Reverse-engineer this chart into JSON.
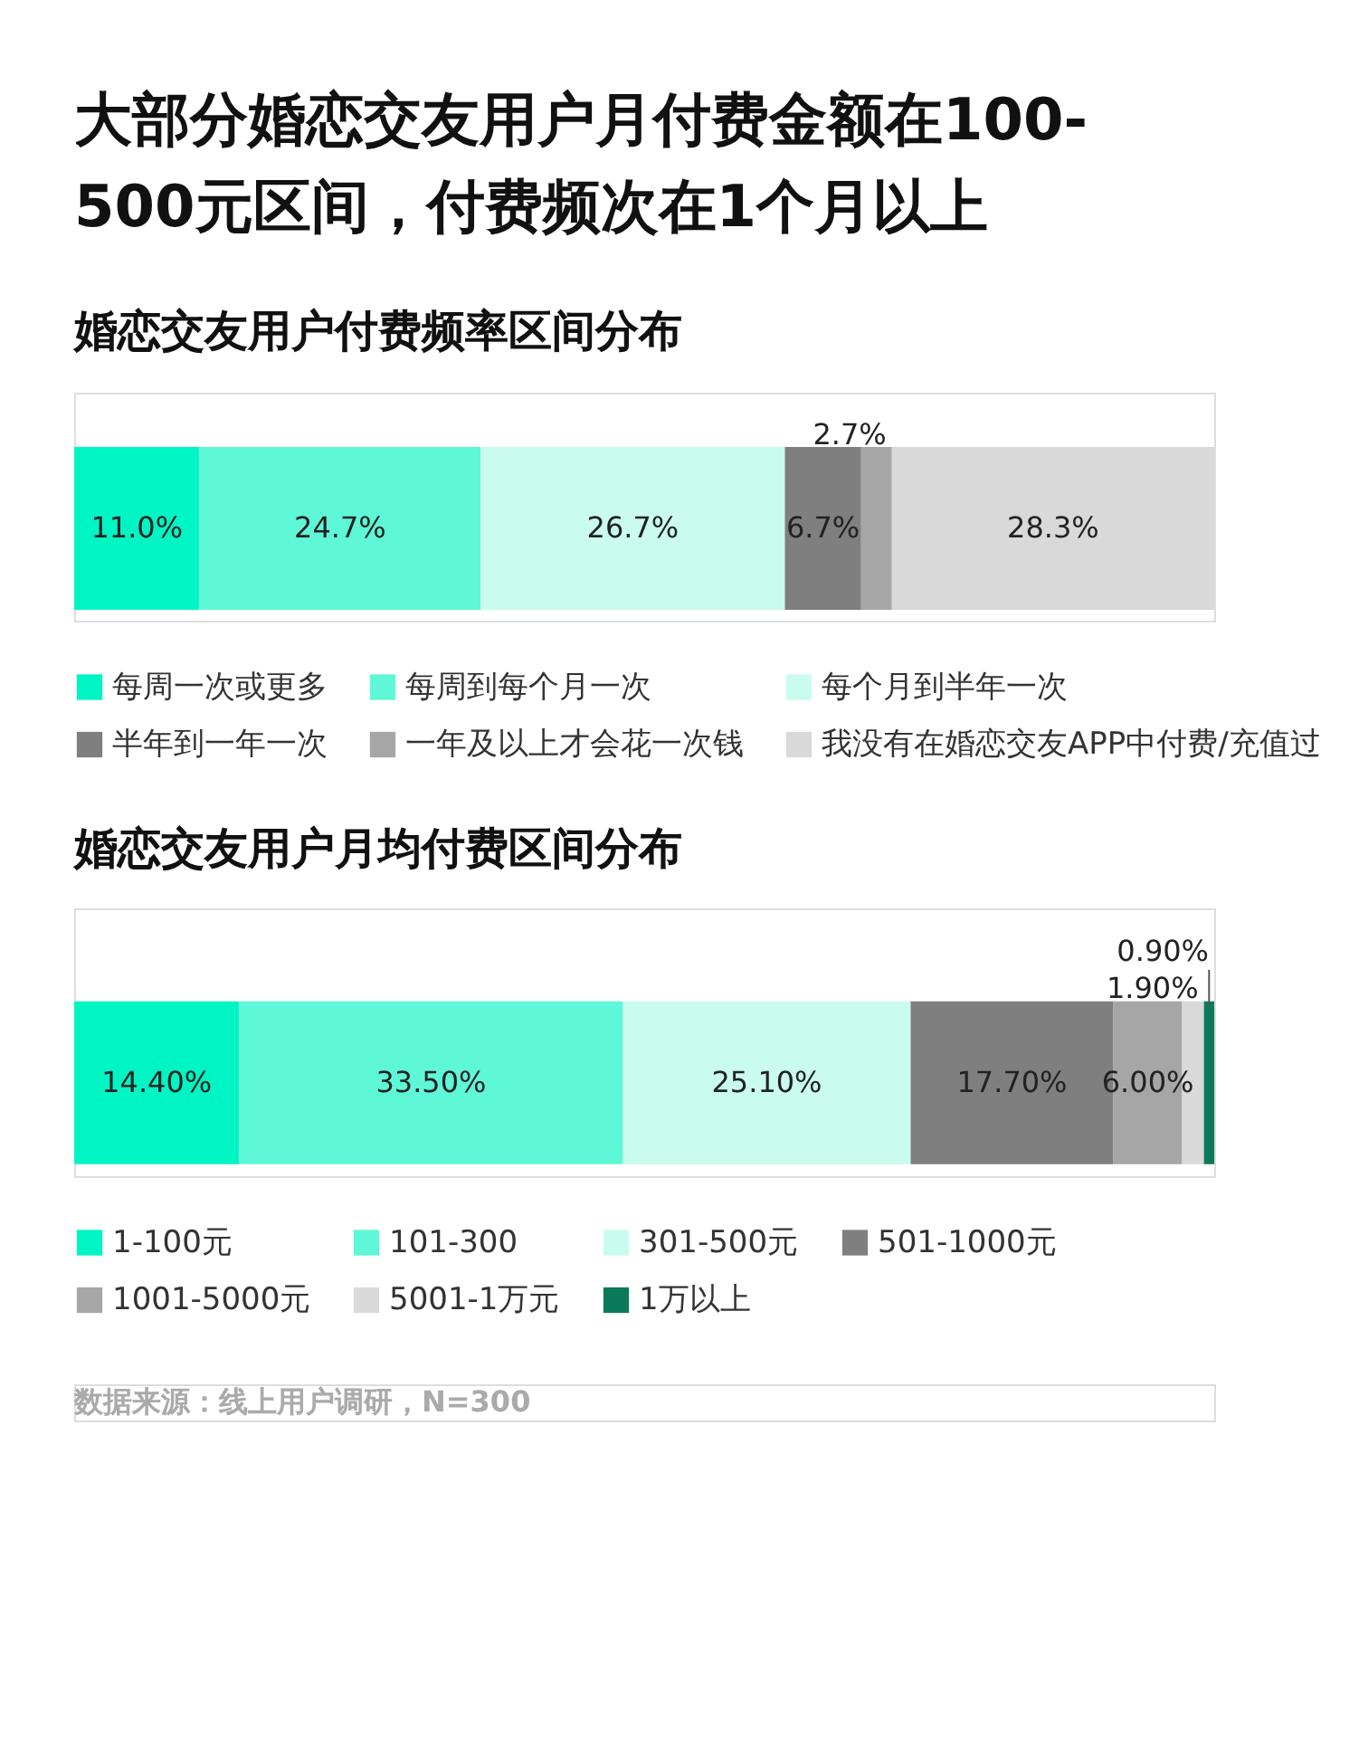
{
  "chart_data": [
    {
      "type": "bar",
      "orientation": "horizontal",
      "stacked": true,
      "title": "大部分婚恋交友用户月付费金额在100-\n500元区间，付费频次在1个月以上",
      "subtitle": "婚恋交友用户付费频率区间分布",
      "categories": [
        null
      ],
      "xlim": [
        0,
        100.1
      ],
      "tick_labels": false,
      "legend": "bottom",
      "data_labels": true,
      "series": [
        {
          "name": "每周一次或更多",
          "color": "#00f5c4",
          "values": [
            11.0
          ],
          "value_labels": [
            "11.0%"
          ]
        },
        {
          "name": "每周到每个月一次",
          "color": "#5ef7d8",
          "values": [
            24.7
          ],
          "value_labels": [
            "24.7%"
          ]
        },
        {
          "name": "每个月到半年一次",
          "color": "#c9fcef",
          "values": [
            26.7
          ],
          "value_labels": [
            "26.7%"
          ]
        },
        {
          "name": "半年到一年一次",
          "color": "#7f7f7f",
          "values": [
            6.7
          ],
          "value_labels": [
            "6.7%"
          ]
        },
        {
          "name": "一年及以上才会花一次钱",
          "color": "#a6a6a6",
          "values": [
            2.7
          ],
          "value_labels": [
            "2.7%"
          ]
        },
        {
          "name": "我没有在婚恋交友APP中付费/充值过",
          "color": "#d9d9d9",
          "values": [
            28.3
          ],
          "value_labels": [
            "28.3%"
          ]
        }
      ]
    },
    {
      "type": "bar",
      "orientation": "horizontal",
      "stacked": true,
      "title": "婚恋交友用户月均付费区间分布",
      "categories": [
        null
      ],
      "xlim": [
        0,
        99.5
      ],
      "tick_labels": false,
      "legend": "bottom",
      "data_labels": true,
      "annotations": [
        "数据来源：线上用户调研，N=300"
      ],
      "series": [
        {
          "name": "1-100元",
          "color": "#00f5c4",
          "values": [
            14.4
          ],
          "value_labels": [
            "14.40%"
          ]
        },
        {
          "name": "101-300",
          "color": "#5ef7d8",
          "values": [
            33.5
          ],
          "value_labels": [
            "33.50%"
          ]
        },
        {
          "name": "301-500元",
          "color": "#c9fcef",
          "values": [
            25.1
          ],
          "value_labels": [
            "25.10%"
          ]
        },
        {
          "name": "501-1000元",
          "color": "#7f7f7f",
          "values": [
            17.7
          ],
          "value_labels": [
            "17.70%"
          ]
        },
        {
          "name": "1001-5000元",
          "color": "#a6a6a6",
          "values": [
            6.0
          ],
          "value_labels": [
            "6.00%"
          ]
        },
        {
          "name": "5001-1万元",
          "color": "#d9d9d9",
          "values": [
            1.9
          ],
          "value_labels": [
            "1.90%"
          ]
        },
        {
          "name": "1万以上",
          "color": "#0b7a5b",
          "values": [
            0.9
          ],
          "value_labels": [
            "0.90%"
          ]
        }
      ]
    }
  ]
}
